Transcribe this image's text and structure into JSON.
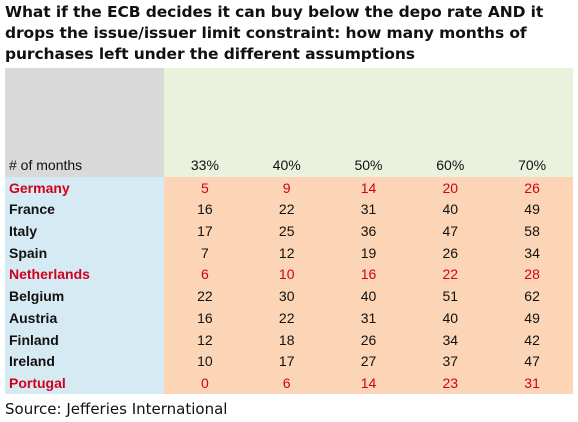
{
  "title": "What if the ECB decides it can buy below the depo rate AND it drops the issue/issuer limit constraint:  how many months of purchases left under the different assumptions",
  "table": {
    "corner_label": "# of months",
    "columns": [
      "33%",
      "40%",
      "50%",
      "60%",
      "70%"
    ],
    "rows": [
      {
        "country": "Germany",
        "highlight": true,
        "values": [
          "5",
          "9",
          "14",
          "20",
          "26"
        ]
      },
      {
        "country": "France",
        "highlight": false,
        "values": [
          "16",
          "22",
          "31",
          "40",
          "49"
        ]
      },
      {
        "country": "Italy",
        "highlight": false,
        "values": [
          "17",
          "25",
          "36",
          "47",
          "58"
        ]
      },
      {
        "country": "Spain",
        "highlight": false,
        "values": [
          "7",
          "12",
          "19",
          "26",
          "34"
        ]
      },
      {
        "country": "Netherlands",
        "highlight": true,
        "values": [
          "6",
          "10",
          "16",
          "22",
          "28"
        ]
      },
      {
        "country": "Belgium",
        "highlight": false,
        "values": [
          "22",
          "30",
          "40",
          "51",
          "62"
        ]
      },
      {
        "country": "Austria",
        "highlight": false,
        "values": [
          "16",
          "22",
          "31",
          "40",
          "49"
        ]
      },
      {
        "country": "Finland",
        "highlight": false,
        "values": [
          "12",
          "18",
          "26",
          "34",
          "42"
        ]
      },
      {
        "country": "Ireland",
        "highlight": false,
        "values": [
          "10",
          "17",
          "27",
          "37",
          "47"
        ]
      },
      {
        "country": "Portugal",
        "highlight": true,
        "values": [
          "0",
          "6",
          "14",
          "23",
          "31"
        ]
      }
    ],
    "colors": {
      "corner_fill": "#d9d9d9",
      "header_fill": "#eaf1dd",
      "label_fill": "#d6eaf3",
      "value_fill": "#fbd5b5",
      "highlight_text": "#d0021b"
    }
  },
  "source": "Source: Jefferies International"
}
